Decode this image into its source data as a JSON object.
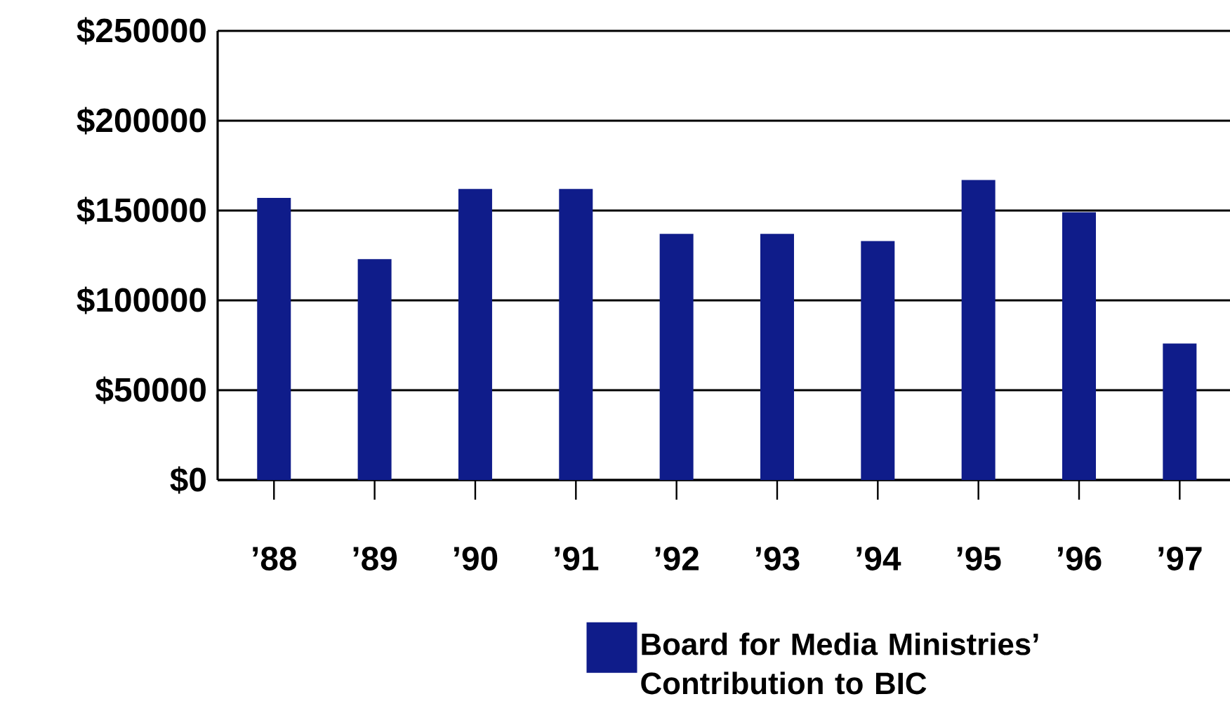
{
  "chart_data": {
    "type": "bar",
    "categories": [
      "’88",
      "’89",
      "’90",
      "’91",
      "’92",
      "’93",
      "’94",
      "’95",
      "’96",
      "’97"
    ],
    "series": [
      {
        "name": "Board for Media Ministries’ Contribution to BIC",
        "color": "#0f1c8a",
        "values": [
          157000,
          123000,
          162000,
          162000,
          137000,
          137000,
          133000,
          167000,
          149000,
          76000
        ]
      }
    ],
    "ylim": [
      0,
      250000
    ],
    "yticks": [
      {
        "value": 0,
        "label": "$0"
      },
      {
        "value": 50000,
        "label": "$50000"
      },
      {
        "value": 100000,
        "label": "$100000"
      },
      {
        "value": 150000,
        "label": "$150000"
      },
      {
        "value": 200000,
        "label": "$200000"
      },
      {
        "value": 250000,
        "label": "$250000"
      }
    ],
    "grid": "y",
    "legend": "bottom right"
  }
}
